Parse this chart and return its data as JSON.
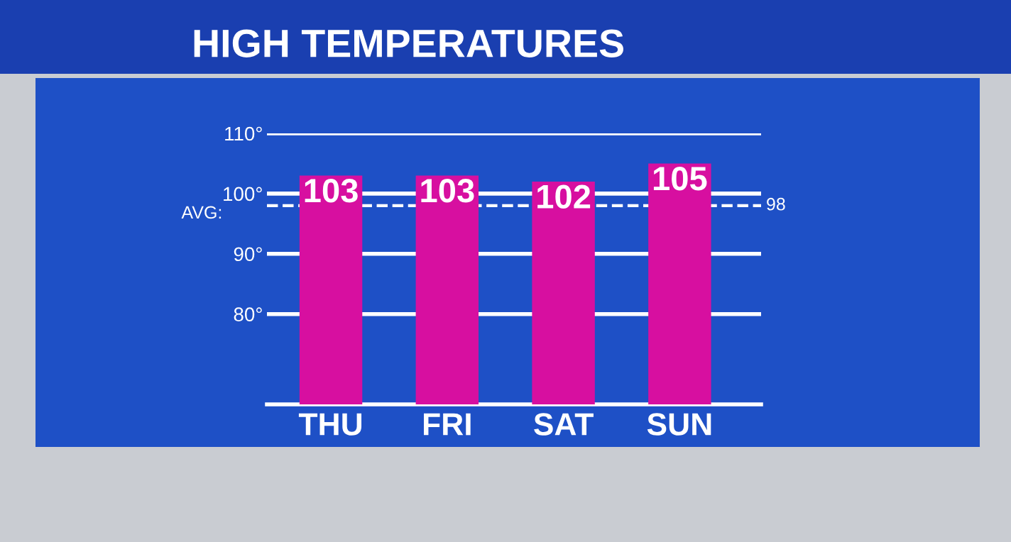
{
  "chart_data": {
    "type": "bar",
    "title": "HIGH TEMPERATURES",
    "categories": [
      "THU",
      "FRI",
      "SAT",
      "SUN"
    ],
    "values": [
      103,
      103,
      102,
      105
    ],
    "color": "#d70fa0",
    "data_labels": true,
    "ylim": [
      65,
      110
    ],
    "annotations": [
      "98"
    ],
    "yticks": [
      {
        "value": 80,
        "label": "80°"
      },
      {
        "value": 90,
        "label": "90°"
      },
      {
        "value": 100,
        "label": "100°"
      },
      {
        "value": 110,
        "label": "110°"
      }
    ],
    "grid": "y",
    "ref_lines": [
      {
        "axis": "y",
        "value": 98,
        "label": "AVG:",
        "line_style": "dashed",
        "color": "#ffffff"
      }
    ]
  }
}
